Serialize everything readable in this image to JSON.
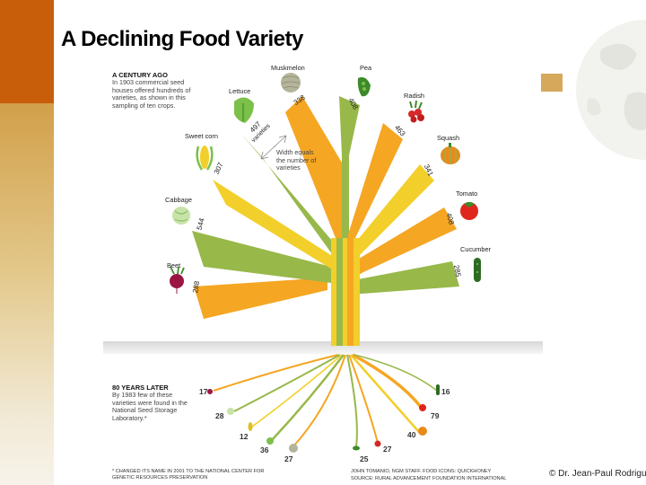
{
  "title": "A Declining Food Variety",
  "credit": "© Dr. Jean-Paul Rodrigue",
  "century_note": {
    "heading": "A CENTURY AGO",
    "text": "In 1903 commercial seed houses offered hundreds of varieties, as shown in this sampling of ten crops."
  },
  "later_note": {
    "heading": "80 YEARS LATER",
    "text": "By 1983 few of these varieties were found in the National Seed Storage Laboratory.*"
  },
  "width_note": "Width equals the number of varieties",
  "varieties_label": "varieties",
  "footnote": "* CHANGED ITS NAME IN 2001 TO THE NATIONAL CENTER FOR GENETIC RESOURCES PRESERVATION",
  "source": {
    "line1": "JOHN TOMANIO, NGM STAFF. FOOD ICONS: QUICKHONEY",
    "line2": "SOURCE: RURAL ADVANCEMENT FOUNDATION INTERNATIONAL"
  },
  "crops": [
    {
      "name": "Beet",
      "v1903": "288",
      "v1983": "17",
      "color": "#f5a623"
    },
    {
      "name": "Cabbage",
      "v1903": "544",
      "v1983": "28",
      "color": "#98b84a"
    },
    {
      "name": "Sweet corn",
      "v1903": "307",
      "v1983": "12",
      "color": "#f2cf2a"
    },
    {
      "name": "Lettuce",
      "v1903": "497",
      "v1983": "36",
      "color": "#98b84a"
    },
    {
      "name": "Muskmelon",
      "v1903": "338",
      "v1983": "27",
      "color": "#f5a623"
    },
    {
      "name": "Pea",
      "v1903": "408",
      "v1983": "25",
      "color": "#98b84a"
    },
    {
      "name": "Radish",
      "v1903": "463",
      "v1983": "27",
      "color": "#f5a623"
    },
    {
      "name": "Squash",
      "v1903": "341",
      "v1983": "40",
      "color": "#f2cf2a"
    },
    {
      "name": "Tomato",
      "v1903": "408",
      "v1983": "79",
      "color": "#f5a623"
    },
    {
      "name": "Cucumber",
      "v1903": "285",
      "v1983": "16",
      "color": "#98b84a"
    }
  ]
}
